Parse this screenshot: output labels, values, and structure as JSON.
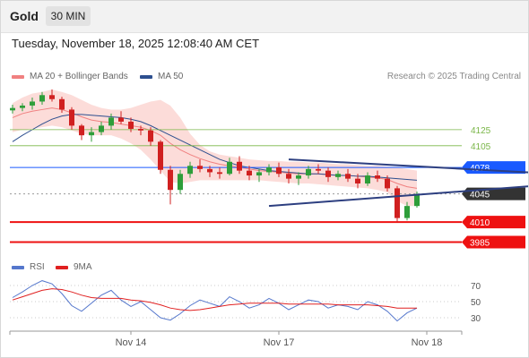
{
  "header": {
    "symbol": "Gold",
    "timeframe": "30 MIN"
  },
  "timestamp": "Tuesday, November 18, 2025 12:08:40 AM CET",
  "legend": {
    "ma20_label": "MA 20 + Bollinger Bands",
    "ma20_color": "#f08080",
    "ma50_label": "MA 50",
    "ma50_color": "#2d4f8f"
  },
  "credit": "Research © 2025 Trading Central",
  "rsi_legend": {
    "rsi_label": "RSI",
    "rsi_color": "#5577cc",
    "ma_label": "9MA",
    "ma_color": "#e02020"
  },
  "chart_data": [
    {
      "type": "candlestick",
      "title": "",
      "x_tick_labels": [
        "Nov 14",
        "Nov 17",
        "Nov 18"
      ],
      "price_range": [
        3970,
        4175
      ],
      "price_levels": [
        {
          "value": 4125,
          "label": "4125",
          "style": "line",
          "color": "#7ab648"
        },
        {
          "value": 4105,
          "label": "4105",
          "style": "line",
          "color": "#7ab648"
        },
        {
          "value": 4078,
          "label": "4078",
          "style": "tag",
          "color": "#1a5aff"
        },
        {
          "value": 4045,
          "label": "4045",
          "style": "tag",
          "color": "#333333"
        },
        {
          "value": 4010,
          "label": "4010",
          "style": "tag",
          "color": "#ee1111"
        },
        {
          "value": 3985,
          "label": "3985",
          "style": "tag",
          "color": "#ee1111"
        }
      ],
      "trendlines": [
        {
          "from": [
            28,
            4088
          ],
          "to": [
            55,
            4070
          ],
          "color": "#2d3f80"
        },
        {
          "from": [
            26,
            4030
          ],
          "to": [
            55,
            4057
          ],
          "color": "#2d3f80"
        }
      ],
      "arrow": {
        "from": [
          57,
          4045
        ],
        "to": [
          62,
          3985
        ],
        "color": "#2d5fa8"
      },
      "candles": [
        [
          4149,
          4156,
          4145,
          4152
        ],
        [
          4152,
          4158,
          4148,
          4155
        ],
        [
          4155,
          4165,
          4150,
          4160
        ],
        [
          4160,
          4172,
          4156,
          4168
        ],
        [
          4168,
          4175,
          4160,
          4163
        ],
        [
          4163,
          4166,
          4146,
          4150
        ],
        [
          4150,
          4153,
          4125,
          4130
        ],
        [
          4130,
          4132,
          4112,
          4118
        ],
        [
          4118,
          4128,
          4110,
          4122
        ],
        [
          4122,
          4135,
          4118,
          4130
        ],
        [
          4130,
          4145,
          4125,
          4140
        ],
        [
          4140,
          4148,
          4132,
          4135
        ],
        [
          4135,
          4140,
          4122,
          4126
        ],
        [
          4126,
          4130,
          4118,
          4124
        ],
        [
          4124,
          4128,
          4105,
          4110
        ],
        [
          4110,
          4112,
          4070,
          4075
        ],
        [
          4075,
          4080,
          4032,
          4050
        ],
        [
          4050,
          4075,
          4045,
          4070
        ],
        [
          4070,
          4085,
          4065,
          4080
        ],
        [
          4080,
          4088,
          4072,
          4076
        ],
        [
          4076,
          4080,
          4066,
          4072
        ],
        [
          4072,
          4078,
          4064,
          4070
        ],
        [
          4070,
          4090,
          4068,
          4085
        ],
        [
          4085,
          4092,
          4070,
          4074
        ],
        [
          4074,
          4080,
          4062,
          4068
        ],
        [
          4068,
          4076,
          4060,
          4072
        ],
        [
          4072,
          4082,
          4068,
          4078
        ],
        [
          4078,
          4084,
          4066,
          4070
        ],
        [
          4070,
          4076,
          4058,
          4064
        ],
        [
          4064,
          4072,
          4056,
          4068
        ],
        [
          4068,
          4080,
          4064,
          4076
        ],
        [
          4076,
          4082,
          4070,
          4074
        ],
        [
          4074,
          4078,
          4060,
          4066
        ],
        [
          4066,
          4074,
          4062,
          4070
        ],
        [
          4070,
          4076,
          4060,
          4064
        ],
        [
          4064,
          4070,
          4052,
          4058
        ],
        [
          4058,
          4072,
          4055,
          4068
        ],
        [
          4068,
          4074,
          4060,
          4064
        ],
        [
          4064,
          4068,
          4048,
          4052
        ],
        [
          4052,
          4055,
          4010,
          4015
        ],
        [
          4015,
          4035,
          4012,
          4030
        ],
        [
          4030,
          4048,
          4028,
          4045
        ]
      ],
      "ma20": [
        4140,
        4145,
        4148,
        4150,
        4152,
        4150,
        4146,
        4141,
        4137,
        4135,
        4134,
        4132,
        4130,
        4128,
        4124,
        4118,
        4108,
        4100,
        4094,
        4089,
        4085,
        4082,
        4080,
        4078,
        4076,
        4074,
        4073,
        4072,
        4071,
        4070,
        4070,
        4070,
        4069,
        4068,
        4068,
        4067,
        4066,
        4065,
        4063,
        4058,
        4054,
        4052
      ],
      "ma50": [
        4110,
        4118,
        4125,
        4132,
        4138,
        4142,
        4144,
        4144,
        4143,
        4142,
        4141,
        4140,
        4138,
        4135,
        4130,
        4124,
        4118,
        4112,
        4106,
        4100,
        4094,
        4088,
        4084,
        4080,
        4078,
        4076,
        4074,
        4073,
        4072,
        4071,
        4070,
        4070,
        4069,
        4068,
        4068,
        4067,
        4067,
        4066,
        4065,
        4064,
        4063,
        4062
      ],
      "bollinger_upper": [
        4158,
        4165,
        4170,
        4172,
        4175,
        4172,
        4168,
        4162,
        4156,
        4152,
        4150,
        4150,
        4152,
        4156,
        4160,
        4162,
        4155,
        4140,
        4120,
        4106,
        4098,
        4094,
        4092,
        4090,
        4088,
        4087,
        4086,
        4086,
        4085,
        4085,
        4084,
        4084,
        4083,
        4082,
        4082,
        4081,
        4080,
        4080,
        4079,
        4078,
        4076,
        4074
      ],
      "bollinger_lower": [
        4122,
        4125,
        4126,
        4128,
        4130,
        4128,
        4124,
        4120,
        4118,
        4118,
        4118,
        4114,
        4108,
        4100,
        4088,
        4074,
        4060,
        4058,
        4060,
        4062,
        4062,
        4062,
        4062,
        4062,
        4062,
        4062,
        4061,
        4060,
        4059,
        4058,
        4058,
        4057,
        4056,
        4055,
        4054,
        4053,
        4052,
        4050,
        4047,
        4036,
        4030,
        4030
      ]
    },
    {
      "type": "line",
      "title": "",
      "ylim": [
        20,
        80
      ],
      "y_ticks": [
        70,
        50,
        30
      ],
      "series": [
        {
          "name": "RSI",
          "values": [
            55,
            62,
            70,
            76,
            72,
            60,
            45,
            38,
            48,
            58,
            64,
            52,
            44,
            50,
            40,
            30,
            27,
            35,
            45,
            52,
            48,
            44,
            56,
            50,
            42,
            46,
            54,
            48,
            40,
            46,
            52,
            50,
            42,
            46,
            44,
            40,
            50,
            46,
            38,
            26,
            36,
            42
          ]
        },
        {
          "name": "9MA",
          "values": [
            52,
            56,
            60,
            64,
            66,
            65,
            62,
            58,
            55,
            54,
            54,
            54,
            52,
            51,
            49,
            46,
            42,
            40,
            39,
            40,
            42,
            44,
            46,
            47,
            48,
            48,
            48,
            48,
            47,
            47,
            47,
            47,
            47,
            46,
            46,
            46,
            46,
            45,
            44,
            42,
            42,
            42
          ]
        }
      ]
    }
  ]
}
